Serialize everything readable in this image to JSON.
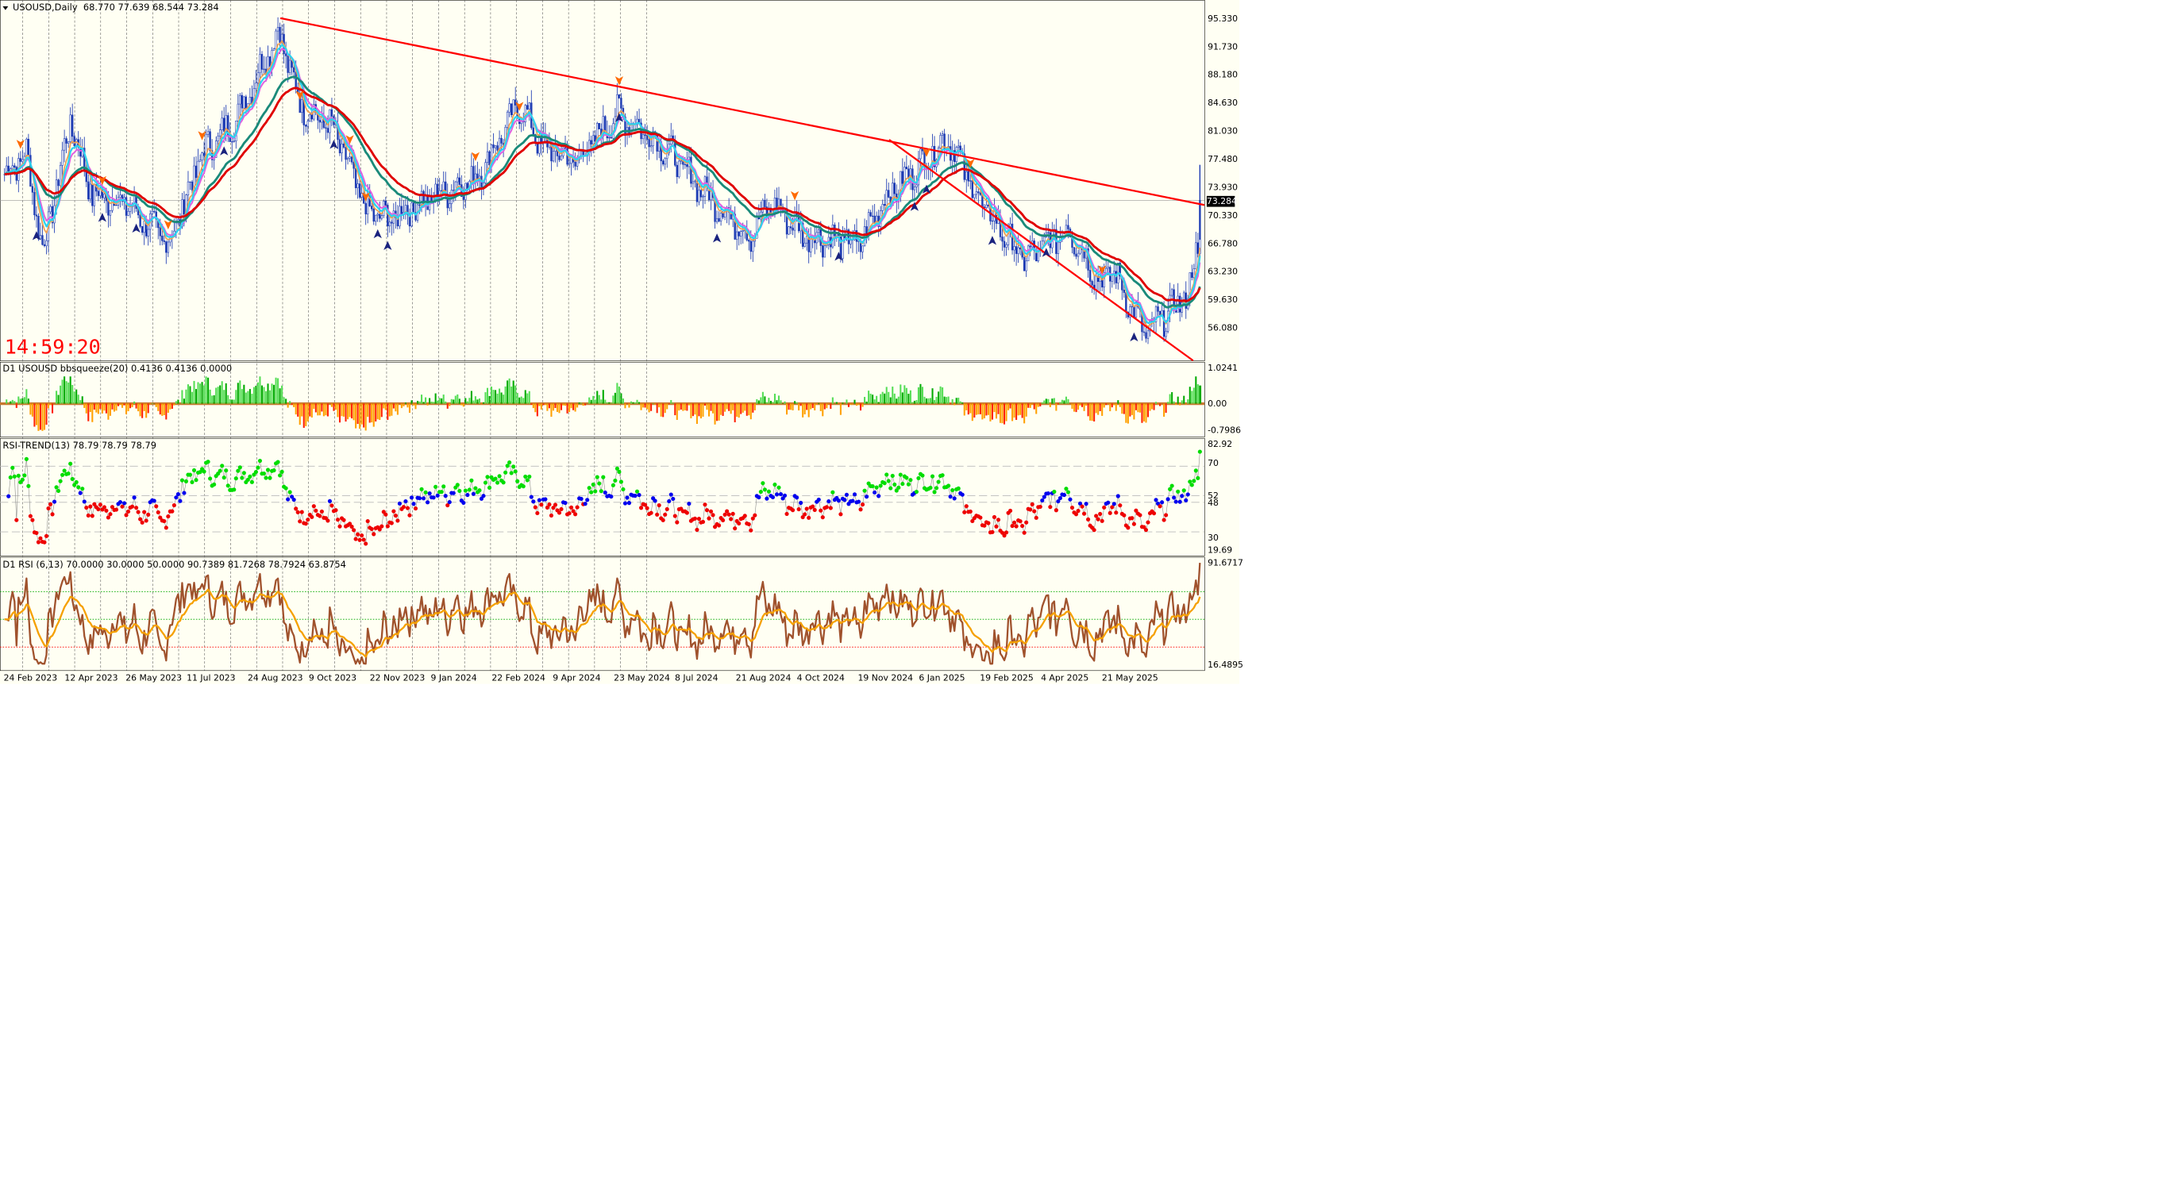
{
  "main": {
    "symbol_label": "USOUSD,Daily",
    "ohlc": "68.770 77.639 68.544 73.284",
    "clock": "14:59:20",
    "current_price": "73.284",
    "price_labels": [
      "95.330",
      "91.730",
      "88.180",
      "84.630",
      "81.030",
      "77.480",
      "73.930",
      "70.330",
      "66.780",
      "63.230",
      "59.630",
      "56.080"
    ],
    "menu_icon": "dropdown-triangle-icon"
  },
  "bbsqueeze": {
    "label": "D1 USOUSD bbsqueeze(20) 0.4136 0.4136 0.0000",
    "axis_labels": [
      "1.0241",
      "0.00",
      "-0.7986"
    ]
  },
  "rsi_trend": {
    "label": "RSI-TREND(13) 78.79 78.79 78.79",
    "axis_labels": [
      "82.92",
      "70",
      "52",
      "48",
      "30",
      "19.69"
    ]
  },
  "rsi": {
    "label": "D1 RSI  (6,13) 70.0000 30.0000 50.0000 90.7389 81.7268 78.7924 63.8754",
    "axis_labels": [
      "91.6717",
      "16.4895"
    ]
  },
  "dates": [
    "24 Feb 2023",
    "12 Apr 2023",
    "26 May 2023",
    "11 Jul 2023",
    "24 Aug 2023",
    "9 Oct 2023",
    "22 Nov 2023",
    "9 Jan 2024",
    "22 Feb 2024",
    "9 Apr 2024",
    "23 May 2024",
    "8 Jul 2024",
    "21 Aug 2024",
    "4 Oct 2024",
    "19 Nov 2024",
    "6 Jan 2025",
    "19 Feb 2025",
    "4 Apr 2025",
    "21 May 2025"
  ],
  "colors": {
    "background": "#fffff3",
    "trendline": "#ff0000",
    "ma_slow": "#e00000",
    "ma_green": "#1a8a7a",
    "ma_cyan": "#2ad4f0",
    "ma_violet": "#e060e0",
    "ma_orange": "#f0a050",
    "candles": "#1e3cb4",
    "rsi_fast": "#a0522d",
    "rsi_slow": "#f5a000",
    "rsi_trend_green": "#00dd00",
    "rsi_trend_red": "#ee0000",
    "rsi_trend_blue": "#0000ee"
  }
}
